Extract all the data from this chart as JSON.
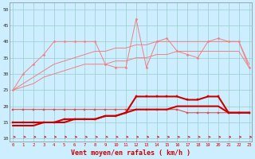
{
  "series": [
    {
      "name": "rafales_max",
      "color": "#f08080",
      "linewidth": 0.7,
      "marker": "D",
      "markersize": 1.5,
      "markevery": 1,
      "y": [
        25,
        30,
        33,
        36,
        40,
        40,
        40,
        40,
        40,
        33,
        32,
        32,
        47,
        32,
        40,
        41,
        37,
        36,
        35,
        40,
        41,
        40,
        40,
        32
      ]
    },
    {
      "name": "upper_envelope",
      "color": "#f08080",
      "linewidth": 0.7,
      "marker": null,
      "y": [
        25,
        27,
        29,
        31,
        33,
        34,
        35,
        36,
        37,
        37,
        38,
        38,
        39,
        39,
        40,
        40,
        40,
        40,
        40,
        40,
        40,
        40,
        40,
        33
      ]
    },
    {
      "name": "lower_envelope",
      "color": "#f08080",
      "linewidth": 0.7,
      "marker": null,
      "y": [
        25,
        26,
        27,
        29,
        30,
        31,
        32,
        33,
        33,
        33,
        34,
        34,
        35,
        35,
        36,
        36,
        37,
        37,
        37,
        37,
        37,
        37,
        37,
        32
      ]
    },
    {
      "name": "vent_moyen_light",
      "color": "#e05050",
      "linewidth": 0.8,
      "marker": "s",
      "markersize": 1.5,
      "y": [
        19,
        19,
        19,
        19,
        19,
        19,
        19,
        19,
        19,
        19,
        19,
        19,
        19,
        19,
        19,
        19,
        19,
        18,
        18,
        18,
        18,
        18,
        18,
        18
      ]
    },
    {
      "name": "vent_rafale_bold",
      "color": "#cc0000",
      "linewidth": 1.5,
      "marker": "s",
      "markersize": 2.0,
      "y": [
        15,
        15,
        15,
        15,
        15,
        16,
        16,
        16,
        16,
        17,
        17,
        18,
        23,
        23,
        23,
        23,
        23,
        22,
        22,
        23,
        23,
        18,
        18,
        18
      ]
    },
    {
      "name": "vent_moyen_bold",
      "color": "#cc0000",
      "linewidth": 1.5,
      "marker": null,
      "y": [
        14,
        14,
        14,
        15,
        15,
        15,
        16,
        16,
        16,
        17,
        17,
        18,
        19,
        19,
        19,
        19,
        20,
        20,
        20,
        20,
        20,
        18,
        18,
        18
      ]
    }
  ],
  "arrow_color": "#cc0000",
  "xlabel": "Vent moyen/en rafales ( km/h )",
  "xlabel_color": "#cc0000",
  "yticks": [
    10,
    15,
    20,
    25,
    30,
    35,
    40,
    45,
    50
  ],
  "xlim": [
    -0.3,
    23.3
  ],
  "ylim": [
    9,
    52
  ],
  "background_color": "#cceeff",
  "grid_color": "#99cccc",
  "spine_color": "#888888"
}
